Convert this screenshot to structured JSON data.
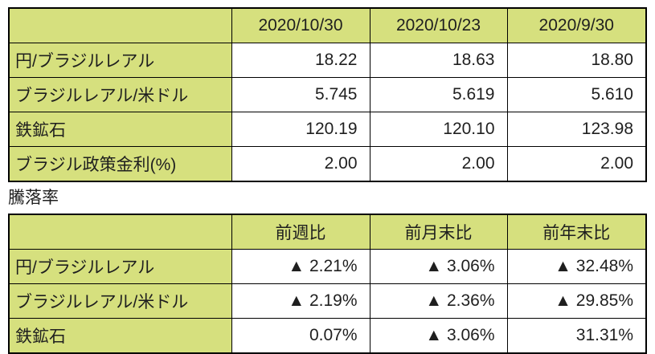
{
  "colors": {
    "header_fill": "#d6e07e",
    "border": "#000000",
    "cell_fill": "#ffffff",
    "text": "#1f1f1f"
  },
  "section_label": "騰落率",
  "chart_data": [
    {
      "type": "table",
      "title": "",
      "columns": [
        "",
        "2020/10/30",
        "2020/10/23",
        "2020/9/30"
      ],
      "rows": [
        [
          "円/ブラジルレアル",
          "18.22",
          "18.63",
          "18.80"
        ],
        [
          "ブラジルレアル/米ドル",
          "5.745",
          "5.619",
          "5.610"
        ],
        [
          "鉄鉱石",
          "120.19",
          "120.10",
          "123.98"
        ],
        [
          "ブラジル政策金利(%)",
          "2.00",
          "2.00",
          "2.00"
        ]
      ]
    },
    {
      "type": "table",
      "title": "騰落率",
      "columns": [
        "",
        "前週比",
        "前月末比",
        "前年末比"
      ],
      "rows": [
        [
          "円/ブラジルレアル",
          "▲ 2.21%",
          "▲ 3.06%",
          "▲ 32.48%"
        ],
        [
          "ブラジルレアル/米ドル",
          "▲ 2.19%",
          "▲ 2.36%",
          "▲ 29.85%"
        ],
        [
          "鉄鉱石",
          "0.07%",
          "▲ 3.06%",
          "31.31%"
        ]
      ]
    }
  ]
}
